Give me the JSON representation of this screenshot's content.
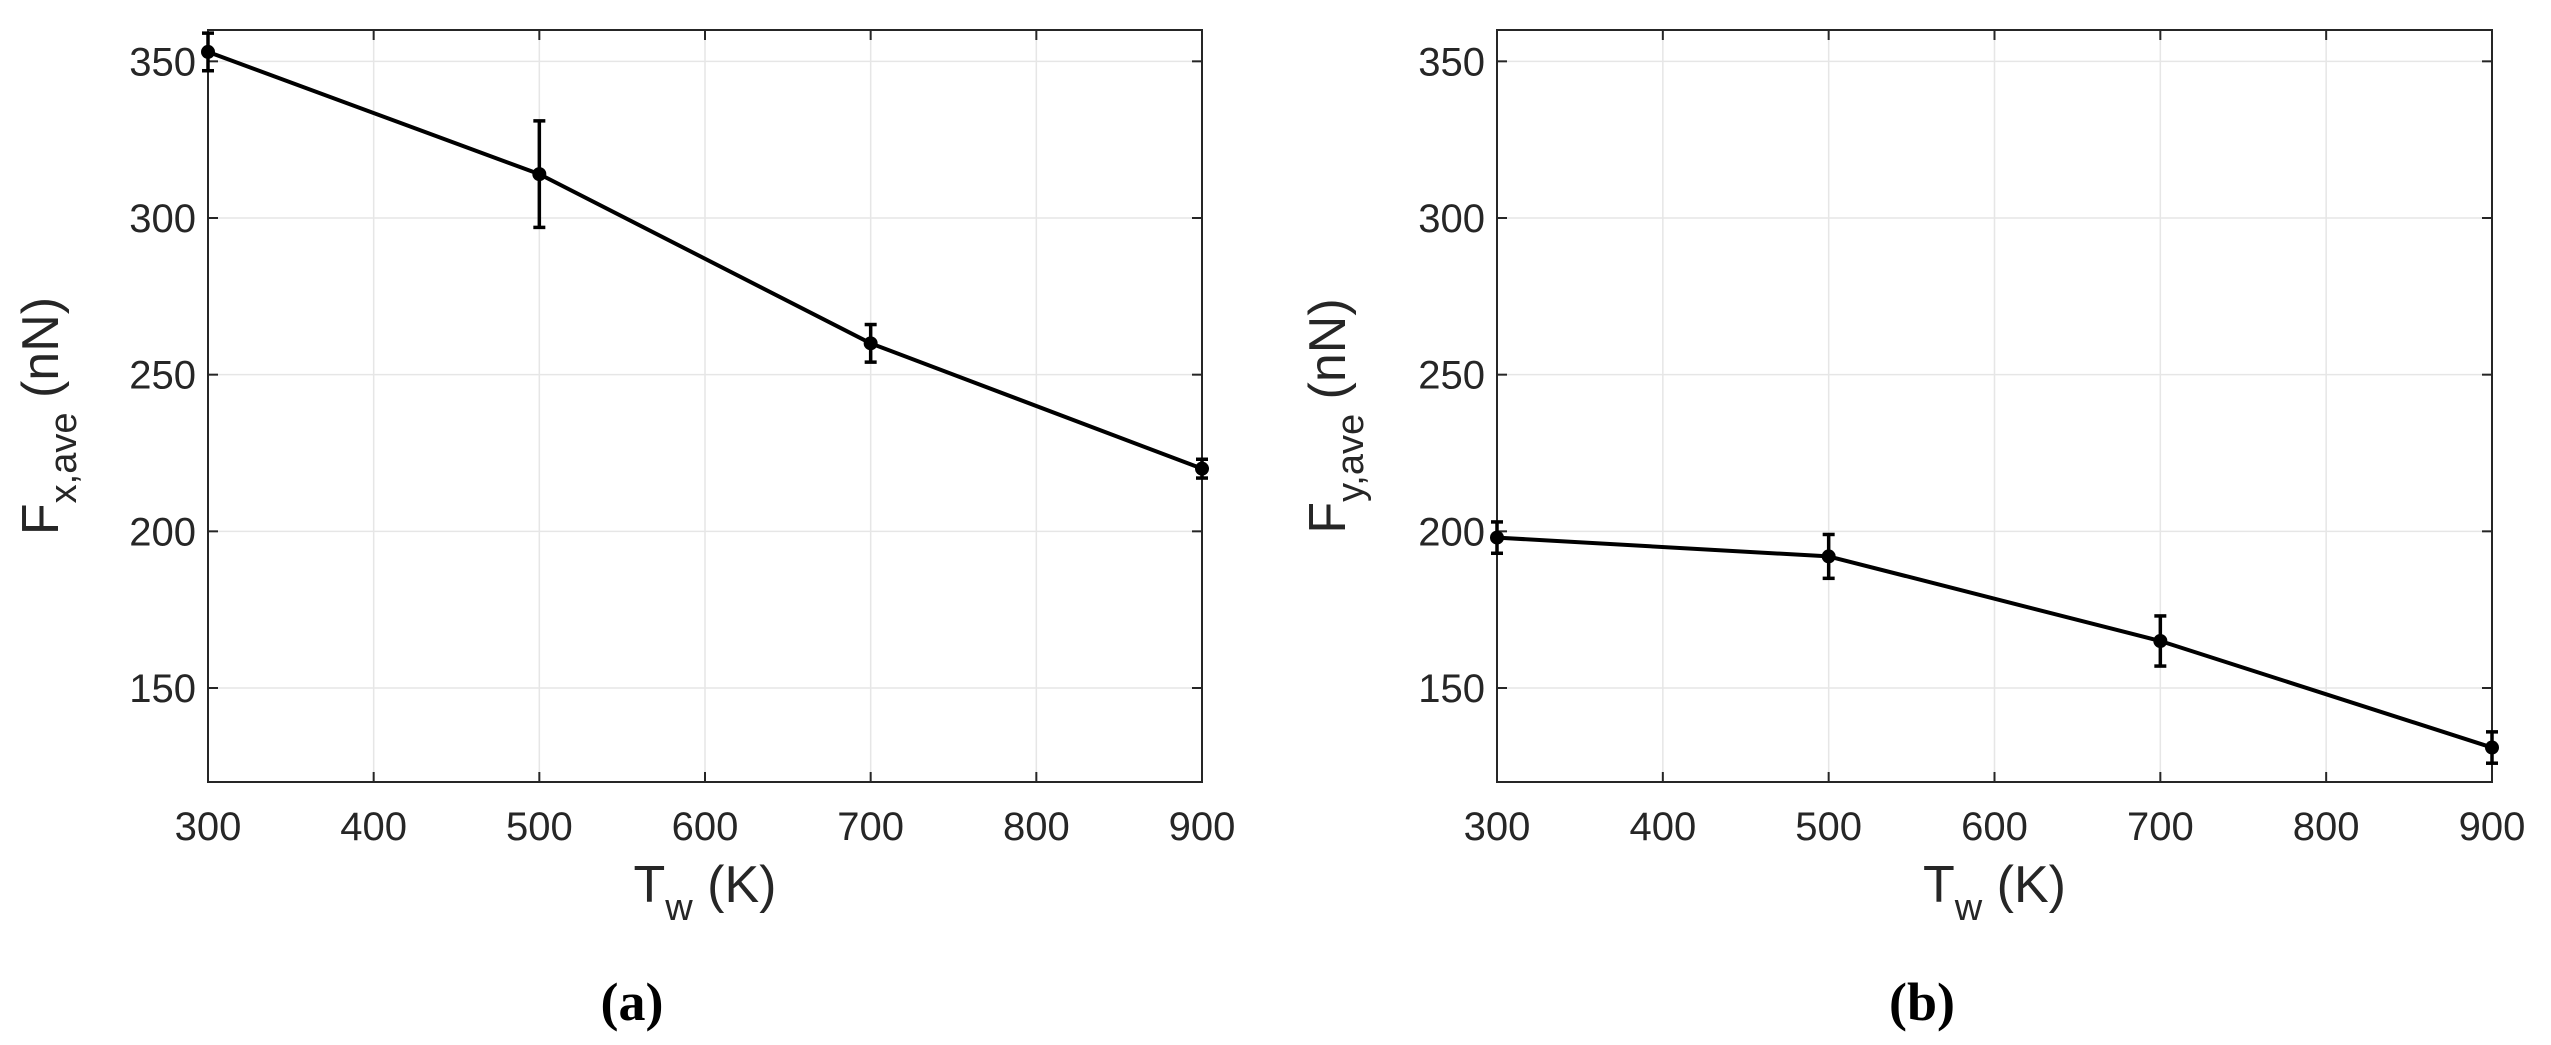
{
  "chart_data": [
    {
      "type": "line",
      "caption": "(a)",
      "xlabel": {
        "main": "T",
        "sub": "w",
        "unit": " (K)"
      },
      "ylabel": {
        "main": "F",
        "sub": "x,ave",
        "unit": " (nN)"
      },
      "xlim": [
        300,
        900
      ],
      "ylim": [
        120,
        360
      ],
      "xticks": [
        300,
        400,
        500,
        600,
        700,
        800,
        900
      ],
      "yticks": [
        150,
        200,
        250,
        300,
        350
      ],
      "grid": true,
      "series": [
        {
          "x": [
            300,
            500,
            700,
            900
          ],
          "y": [
            353,
            314,
            260,
            220
          ],
          "err": [
            6,
            17,
            6,
            3
          ]
        }
      ]
    },
    {
      "type": "line",
      "caption": "(b)",
      "xlabel": {
        "main": "T",
        "sub": "w",
        "unit": " (K)"
      },
      "ylabel": {
        "main": "F",
        "sub": "y,ave",
        "unit": " (nN)"
      },
      "xlim": [
        300,
        900
      ],
      "ylim": [
        120,
        360
      ],
      "xticks": [
        300,
        400,
        500,
        600,
        700,
        800,
        900
      ],
      "yticks": [
        150,
        200,
        250,
        300,
        350
      ],
      "grid": true,
      "series": [
        {
          "x": [
            300,
            500,
            700,
            900
          ],
          "y": [
            198,
            192,
            165,
            131
          ],
          "err": [
            5,
            7,
            8,
            5
          ]
        }
      ]
    }
  ],
  "colors": {
    "line": "#000000",
    "grid": "#e6e6e6",
    "axes": "#262626",
    "text": "#262626"
  }
}
